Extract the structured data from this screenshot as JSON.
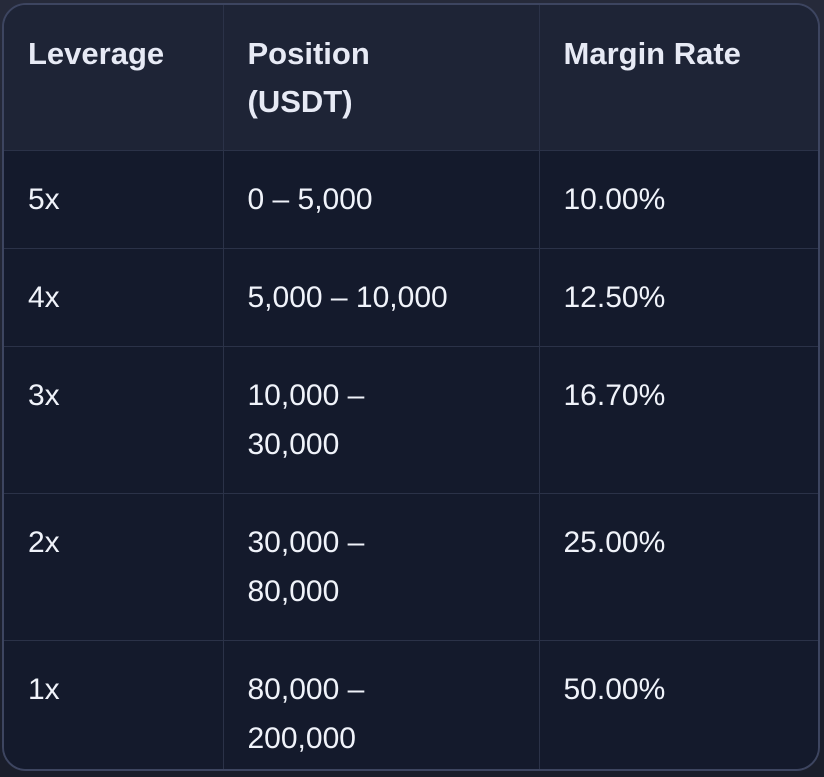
{
  "colors": {
    "page-bg-top": "#262a3a",
    "page-bg-bottom": "#1a1e2b",
    "card-bg": "#141a2c",
    "header-bg": "#1e2436",
    "border-outer": "#3d4560",
    "border-inner": "#2b3248",
    "header-text": "#e7eaf5",
    "cell-text": "#f0f3fa"
  },
  "table": {
    "columns": [
      {
        "label": "Leverage"
      },
      {
        "label": "Position\n(USDT)"
      },
      {
        "label": "Margin Rate"
      }
    ],
    "rows": [
      {
        "leverage": "5x",
        "position": "0 – 5,000",
        "margin_rate": "10.00%"
      },
      {
        "leverage": "4x",
        "position": "5,000 – 10,000",
        "margin_rate": "12.50%"
      },
      {
        "leverage": "3x",
        "position": "10,000 –\n30,000",
        "margin_rate": "16.70%"
      },
      {
        "leverage": "2x",
        "position": "30,000 –\n80,000",
        "margin_rate": "25.00%"
      },
      {
        "leverage": "1x",
        "position": "80,000 –\n200,000",
        "margin_rate": "50.00%"
      }
    ]
  }
}
